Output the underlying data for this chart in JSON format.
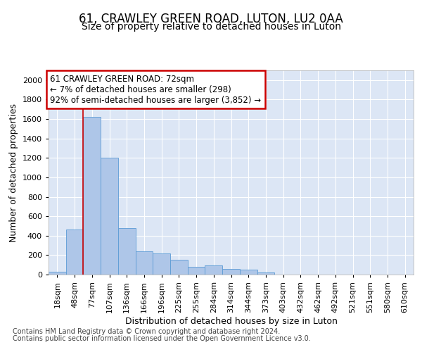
{
  "title_line1": "61, CRAWLEY GREEN ROAD, LUTON, LU2 0AA",
  "title_line2": "Size of property relative to detached houses in Luton",
  "xlabel": "Distribution of detached houses by size in Luton",
  "ylabel": "Number of detached properties",
  "categories": [
    "18sqm",
    "48sqm",
    "77sqm",
    "107sqm",
    "136sqm",
    "166sqm",
    "196sqm",
    "225sqm",
    "255sqm",
    "284sqm",
    "314sqm",
    "344sqm",
    "373sqm",
    "403sqm",
    "432sqm",
    "462sqm",
    "492sqm",
    "521sqm",
    "551sqm",
    "580sqm",
    "610sqm"
  ],
  "values": [
    30,
    460,
    1620,
    1200,
    480,
    240,
    215,
    155,
    80,
    95,
    60,
    50,
    20,
    0,
    0,
    0,
    0,
    0,
    0,
    0,
    0
  ],
  "bar_color": "#aec6e8",
  "bar_edge_color": "#5b9bd5",
  "background_color": "#dce6f5",
  "grid_color": "#ffffff",
  "annotation_text": "61 CRAWLEY GREEN ROAD: 72sqm\n← 7% of detached houses are smaller (298)\n92% of semi-detached houses are larger (3,852) →",
  "annotation_box_color": "#ffffff",
  "annotation_box_edge_color": "#cc0000",
  "red_line_x": 1.5,
  "ylim": [
    0,
    2100
  ],
  "yticks": [
    0,
    200,
    400,
    600,
    800,
    1000,
    1200,
    1400,
    1600,
    1800,
    2000
  ],
  "footer_line1": "Contains HM Land Registry data © Crown copyright and database right 2024.",
  "footer_line2": "Contains public sector information licensed under the Open Government Licence v3.0.",
  "title_fontsize": 12,
  "subtitle_fontsize": 10,
  "axis_label_fontsize": 9,
  "tick_fontsize": 8,
  "annotation_fontsize": 8.5,
  "footer_fontsize": 7
}
